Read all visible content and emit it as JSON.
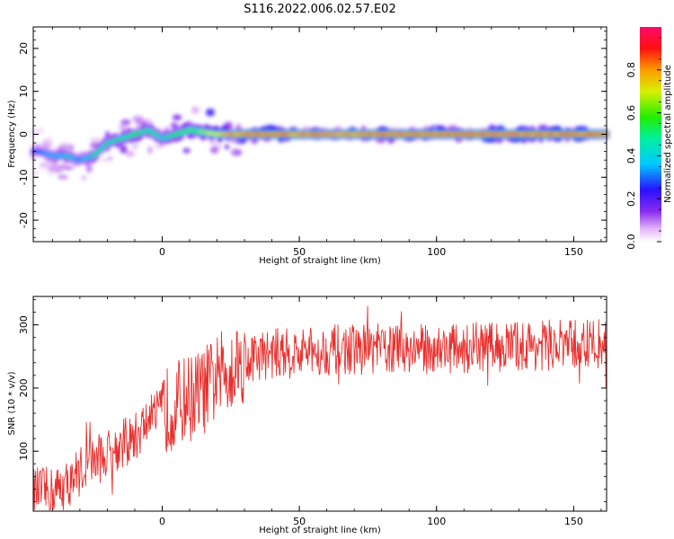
{
  "title": "S116.2022.006.02.57.E02",
  "chart_data": [
    {
      "type": "heatmap",
      "xlabel": "Height of straight line (km)",
      "ylabel": "Frequency (Hz)",
      "xlim": [
        -47,
        162
      ],
      "ylim": [
        -25,
        25
      ],
      "xticks": [
        0,
        50,
        100,
        150
      ],
      "yticks": [
        -20,
        -10,
        0,
        10,
        20
      ],
      "colorbar": {
        "label": "Normalized spectral amplitude",
        "range": [
          0,
          1
        ],
        "ticks": [
          0.0,
          0.2,
          0.4,
          0.6,
          0.8
        ],
        "colormap": "hsv-like (white to purple to blue to cyan to green to yellow to red to magenta)"
      },
      "ridge": {
        "height_km": [
          -45,
          -40,
          -35,
          -30,
          -25,
          -20,
          -15,
          -10,
          -5,
          0,
          5,
          10,
          15,
          20,
          30,
          40,
          60,
          80,
          100,
          120,
          140,
          160
        ],
        "frequency_hz": [
          -4,
          -5,
          -5,
          -6,
          -5,
          -2,
          -1,
          0,
          1,
          -1,
          0,
          1,
          0.5,
          0,
          0,
          0,
          0,
          0,
          0,
          0,
          0,
          0
        ],
        "peak_amplitude": [
          0.3,
          0.4,
          0.45,
          0.35,
          0.5,
          0.5,
          0.55,
          0.6,
          0.55,
          0.5,
          0.6,
          0.65,
          0.7,
          0.8,
          0.95,
          0.95,
          0.9,
          0.95,
          0.95,
          0.95,
          0.95,
          0.95
        ]
      },
      "grid": false
    },
    {
      "type": "line",
      "xlabel": "Height of straight line (km)",
      "ylabel": "SNR (10 * v/v)",
      "xlim": [
        -47,
        162
      ],
      "ylim": [
        5,
        345
      ],
      "xticks": [
        0,
        50,
        100,
        150
      ],
      "yticks": [
        100,
        200,
        300
      ],
      "color": "#e8302e",
      "series": [
        {
          "x": [
            -47,
            -40,
            -35,
            -30,
            -25,
            -20,
            -15,
            -10,
            -5,
            0,
            5,
            10,
            15,
            20,
            25,
            30,
            40,
            50,
            60,
            80,
            100,
            120,
            140,
            160,
            162
          ],
          "y": [
            35,
            35,
            45,
            70,
            85,
            95,
            110,
            120,
            150,
            160,
            175,
            185,
            195,
            215,
            235,
            245,
            255,
            255,
            260,
            262,
            262,
            265,
            268,
            270,
            270
          ]
        }
      ],
      "grid": false
    }
  ]
}
